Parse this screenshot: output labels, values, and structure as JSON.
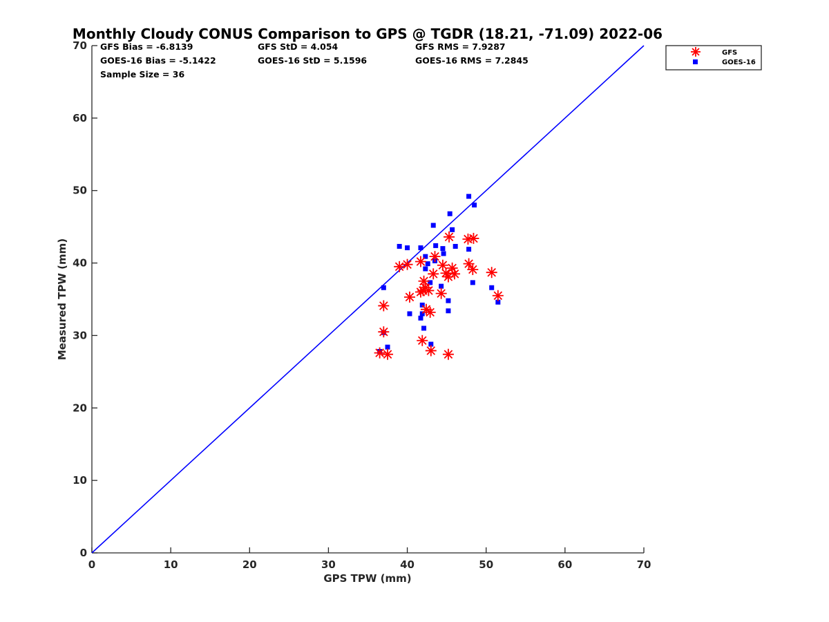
{
  "chart_data": {
    "type": "scatter",
    "title": "Monthly Cloudy CONUS Comparison to GPS @ TGDR (18.21, -71.09) 2022-06",
    "xlabel": "GPS TPW (mm)",
    "ylabel": "Measured TPW (mm)",
    "xlim": [
      0,
      70
    ],
    "ylim": [
      0,
      70
    ],
    "x_ticks": [
      "0",
      "10",
      "20",
      "30",
      "40",
      "50",
      "60",
      "70"
    ],
    "y_ticks": [
      "0",
      "10",
      "20",
      "30",
      "40",
      "50",
      "60",
      "70"
    ],
    "grid": false,
    "legend_position": "top-right (outside plot)",
    "reference_line": {
      "x": [
        0,
        70
      ],
      "y": [
        0,
        70
      ],
      "color": "#0000ff"
    },
    "stats": {
      "gfs_bias": "GFS Bias = -6.8139",
      "goes_bias": "GOES-16 Bias = -5.1422",
      "sample_size": "Sample Size = 36",
      "gfs_std": "GFS StD = 4.054",
      "goes_std": "GOES-16 StD = 5.1596",
      "gfs_rms": "GFS RMS = 7.9287",
      "goes_rms": "GOES-16 RMS = 7.2845"
    },
    "series": [
      {
        "name": "GFS",
        "marker": "asterisk",
        "color": "#ff0000",
        "points": [
          [
            36.5,
            27.6
          ],
          [
            37.5,
            27.4
          ],
          [
            37.0,
            30.5
          ],
          [
            37.0,
            34.1
          ],
          [
            39.0,
            39.5
          ],
          [
            40.0,
            39.8
          ],
          [
            40.3,
            35.3
          ],
          [
            41.7,
            40.2
          ],
          [
            41.7,
            36.0
          ],
          [
            41.9,
            29.3
          ],
          [
            42.0,
            36.2
          ],
          [
            42.1,
            37.5
          ],
          [
            42.3,
            36.6
          ],
          [
            42.4,
            33.6
          ],
          [
            42.7,
            36.2
          ],
          [
            42.9,
            33.2
          ],
          [
            43.0,
            27.9
          ],
          [
            43.3,
            38.5
          ],
          [
            43.5,
            40.9
          ],
          [
            44.3,
            35.8
          ],
          [
            44.5,
            39.7
          ],
          [
            44.9,
            38.6
          ],
          [
            45.2,
            38.1
          ],
          [
            45.2,
            27.4
          ],
          [
            45.3,
            43.6
          ],
          [
            45.7,
            39.3
          ],
          [
            46.0,
            38.5
          ],
          [
            47.7,
            43.3
          ],
          [
            47.8,
            39.9
          ],
          [
            48.3,
            39.1
          ],
          [
            48.4,
            43.4
          ],
          [
            50.7,
            38.7
          ],
          [
            51.5,
            35.5
          ]
        ]
      },
      {
        "name": "GOES-16",
        "marker": "square",
        "color": "#0000ff",
        "points": [
          [
            36.5,
            27.8
          ],
          [
            37.0,
            30.4
          ],
          [
            37.0,
            36.6
          ],
          [
            37.5,
            28.4
          ],
          [
            39.0,
            42.3
          ],
          [
            40.0,
            42.1
          ],
          [
            40.3,
            33.0
          ],
          [
            41.7,
            42.1
          ],
          [
            41.7,
            32.4
          ],
          [
            41.9,
            34.2
          ],
          [
            41.9,
            33.0
          ],
          [
            42.1,
            31.0
          ],
          [
            42.3,
            40.9
          ],
          [
            42.3,
            39.2
          ],
          [
            42.6,
            39.9
          ],
          [
            42.9,
            37.3
          ],
          [
            43.0,
            28.8
          ],
          [
            43.3,
            45.2
          ],
          [
            43.5,
            40.3
          ],
          [
            43.6,
            42.4
          ],
          [
            44.3,
            36.8
          ],
          [
            44.5,
            42.0
          ],
          [
            44.6,
            41.3
          ],
          [
            45.2,
            34.8
          ],
          [
            45.2,
            33.4
          ],
          [
            45.4,
            46.8
          ],
          [
            45.7,
            44.6
          ],
          [
            46.1,
            42.3
          ],
          [
            47.8,
            41.9
          ],
          [
            47.8,
            49.2
          ],
          [
            48.3,
            37.3
          ],
          [
            48.5,
            48.0
          ],
          [
            50.7,
            36.6
          ],
          [
            51.5,
            34.6
          ]
        ]
      }
    ]
  }
}
